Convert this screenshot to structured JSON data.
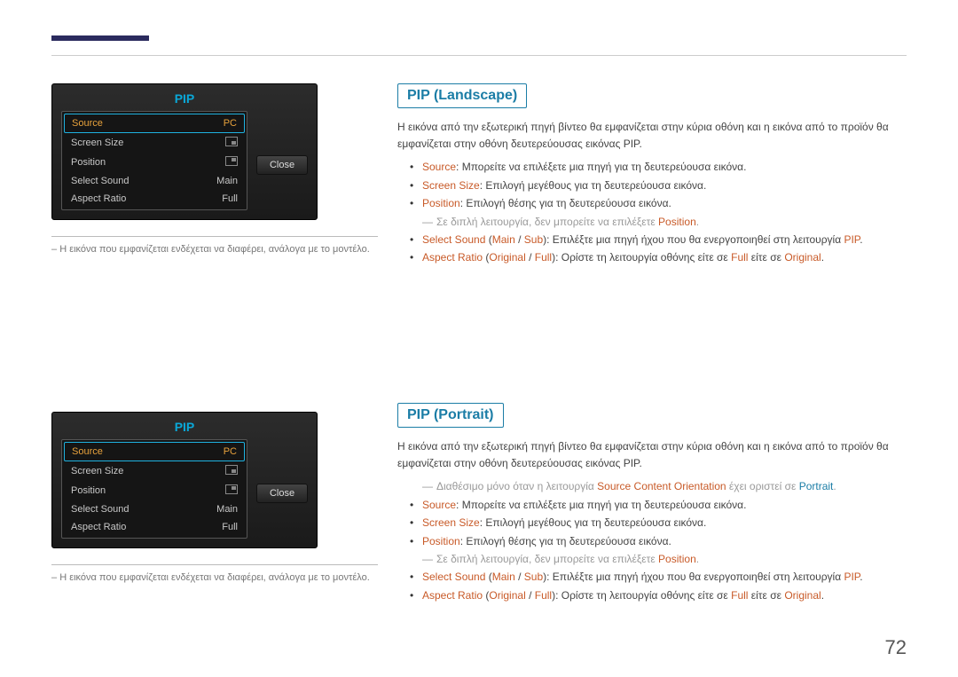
{
  "page_number": "72",
  "colors": {
    "accent_red": "#c85a28",
    "accent_blue": "#1b7da6",
    "panel_title": "#0aa8d8",
    "sel_text": "#e8a23c",
    "muted": "#999999"
  },
  "pip_panel": {
    "title": "PIP",
    "close_label": "Close",
    "rows": [
      {
        "label": "Source",
        "value": "PC",
        "selected": true
      },
      {
        "label": "Screen Size",
        "value_icon": "br"
      },
      {
        "label": "Position",
        "value_icon": "tr"
      },
      {
        "label": "Select Sound",
        "value": "Main"
      },
      {
        "label": "Aspect Ratio",
        "value": "Full"
      }
    ]
  },
  "left_note": "Η εικόνα που εμφανίζεται ενδέχεται να διαφέρει, ανάλογα με το μοντέλο.",
  "section1": {
    "title": "PIP (Landscape)",
    "intro": "Η εικόνα από την εξωτερική πηγή βίντεο θα εμφανίζεται στην κύρια οθόνη και η εικόνα από το προϊόν θα εμφανίζεται στην οθόνη δευτερεύουσας εικόνας PIP.",
    "items": {
      "b1_kw": "Source",
      "b1_txt": ": Μπορείτε να επιλέξετε μια πηγή για τη δευτερεύουσα εικόνα.",
      "b2_kw": "Screen Size",
      "b2_txt": ": Επιλογή μεγέθους για τη δευτερεύουσα εικόνα.",
      "b3_kw": "Position",
      "b3_txt": ": Επιλογή θέσης για τη δευτερεύουσα εικόνα.",
      "sub1_a": "Σε διπλή λειτουργία, δεν μπορείτε να επιλέξετε ",
      "sub1_kw": "Position",
      "sub1_b": ".",
      "b4_kw": "Select Sound",
      "b4_opt1": "Main",
      "b4_opt2": "Sub",
      "b4_txt": "): Επιλέξτε μια πηγή ήχου που θα ενεργοποιηθεί στη λειτουργία ",
      "b4_kw2": "PIP",
      "b5_kw": "Aspect Ratio",
      "b5_opt1": "Original",
      "b5_opt2": "Full",
      "b5_txt": "): Ορίστε τη λειτουργία οθόνης είτε σε ",
      "b5_mid": " είτε σε "
    }
  },
  "section2": {
    "title": "PIP (Portrait)",
    "intro": "Η εικόνα από την εξωτερική πηγή βίντεο θα εμφανίζεται στην κύρια οθόνη και η εικόνα από το προϊόν θα εμφανίζεται στην οθόνη δευτερεύουσας εικόνας PIP.",
    "avail_a": "Διαθέσιμο μόνο όταν η λειτουργία ",
    "avail_kw": "Source Content Orientation",
    "avail_b": " έχει οριστεί σε ",
    "avail_kw2": "Portrait",
    "items_same_as": "section1"
  }
}
